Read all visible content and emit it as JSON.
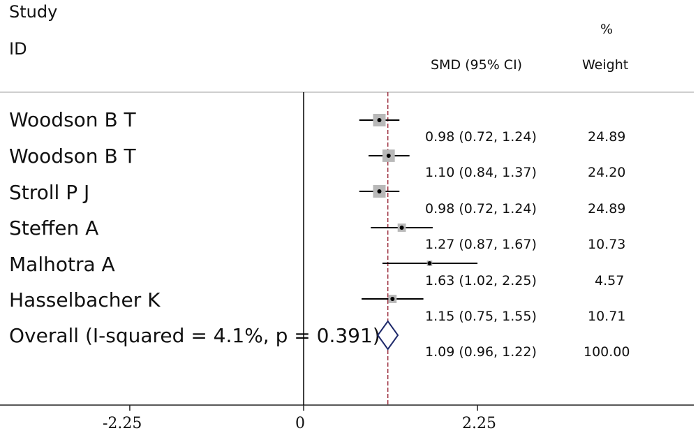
{
  "header": {
    "study_label": "Study",
    "id_label": "ID",
    "effect_label": "SMD (95% CI)",
    "weight_pct": "%",
    "weight_label": "Weight"
  },
  "colors": {
    "reference_line": "#9b2c3c",
    "weight_box": "#b8b8b8",
    "ci_line": "#000000",
    "diamond": "#1f2a6b"
  },
  "chart_data": {
    "type": "forest",
    "title": "",
    "xlabel": "",
    "x_ticks": [
      -2.25,
      0,
      2.25
    ],
    "x_tick_labels": [
      "-2.25",
      "0",
      "2.25"
    ],
    "null_line": 0,
    "overall_line": 1.09,
    "studies": [
      {
        "label": "Woodson B T",
        "smd": 0.98,
        "ci_low": 0.72,
        "ci_high": 1.24,
        "ci_text": "0.98 (0.72, 1.24)",
        "weight": 24.89,
        "weight_text": "24.89"
      },
      {
        "label": "Woodson B T",
        "smd": 1.1,
        "ci_low": 0.84,
        "ci_high": 1.37,
        "ci_text": "1.10 (0.84, 1.37)",
        "weight": 24.2,
        "weight_text": "24.20"
      },
      {
        "label": "Stroll P J",
        "smd": 0.98,
        "ci_low": 0.72,
        "ci_high": 1.24,
        "ci_text": "0.98 (0.72, 1.24)",
        "weight": 24.89,
        "weight_text": "24.89"
      },
      {
        "label": "Steffen A",
        "smd": 1.27,
        "ci_low": 0.87,
        "ci_high": 1.67,
        "ci_text": "1.27 (0.87, 1.67)",
        "weight": 10.73,
        "weight_text": "10.73"
      },
      {
        "label": "Malhotra A",
        "smd": 1.63,
        "ci_low": 1.02,
        "ci_high": 2.25,
        "ci_text": "1.63 (1.02, 2.25)",
        "weight": 4.57,
        "weight_text": "4.57"
      },
      {
        "label": "Hasselbacher K",
        "smd": 1.15,
        "ci_low": 0.75,
        "ci_high": 1.55,
        "ci_text": "1.15 (0.75, 1.55)",
        "weight": 10.71,
        "weight_text": "10.71"
      }
    ],
    "overall": {
      "label": "Overall  (I-squared = 4.1%, p = 0.391)",
      "smd": 1.09,
      "ci_low": 0.96,
      "ci_high": 1.22,
      "ci_text": "1.09 (0.96, 1.22)",
      "weight": 100.0,
      "weight_text": "100.00"
    }
  }
}
